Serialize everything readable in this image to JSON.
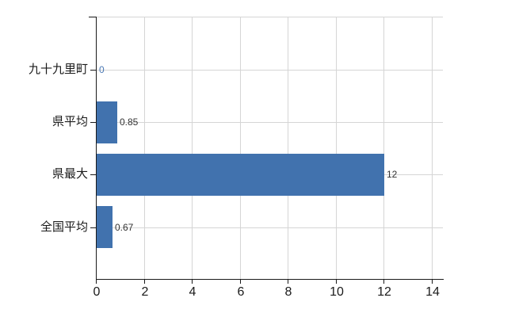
{
  "chart_data": {
    "type": "bar",
    "orientation": "horizontal",
    "title": "",
    "categories": [
      "九十九里町",
      "県平均",
      "県最大",
      "全国平均"
    ],
    "values": [
      0,
      0.85,
      12,
      0.67
    ],
    "value_labels": [
      "0",
      "0.85",
      "12",
      "0.67"
    ],
    "x_ticks": [
      "0",
      "2",
      "4",
      "6",
      "8",
      "10",
      "12",
      "14"
    ],
    "x_tick_values": [
      0,
      2,
      4,
      6,
      8,
      10,
      12,
      14
    ],
    "xlim": [
      0,
      14.45
    ],
    "grid": true,
    "legend": false,
    "colors": {
      "bar": "#4172ae",
      "value_label": "#333333",
      "zero_value_label": "#4a78b4",
      "grid": "#d5d5d5",
      "axis": "#1a1a1a",
      "text": "#1a1a1a",
      "background": "#ffffff"
    }
  }
}
